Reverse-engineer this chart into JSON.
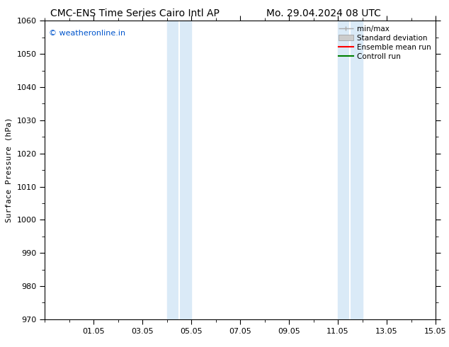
{
  "title_left": "CMC-ENS Time Series Cairo Intl AP",
  "title_right": "Mo. 29.04.2024 08 UTC",
  "ylabel": "Surface Pressure (hPa)",
  "ylim": [
    970,
    1060
  ],
  "yticks": [
    970,
    980,
    990,
    1000,
    1010,
    1020,
    1030,
    1040,
    1050,
    1060
  ],
  "xtick_labels": [
    "01.05",
    "03.05",
    "05.05",
    "07.05",
    "09.05",
    "11.05",
    "13.05",
    "15.05"
  ],
  "xtick_positions": [
    2,
    4,
    6,
    8,
    10,
    12,
    14,
    16
  ],
  "shaded_bands": [
    {
      "x_start": 5.0,
      "x_end": 5.5
    },
    {
      "x_start": 5.5,
      "x_end": 6.0
    },
    {
      "x_start": 12.0,
      "x_end": 12.5
    },
    {
      "x_start": 12.5,
      "x_end": 13.0
    }
  ],
  "shade_color": "#daeaf7",
  "watermark_text": "© weatheronline.in",
  "watermark_color": "#0055cc",
  "legend_entries": [
    {
      "label": "min/max",
      "color": "#aaaaaa",
      "lw": 1.0
    },
    {
      "label": "Standard deviation",
      "color": "#cccccc",
      "lw": 6
    },
    {
      "label": "Ensemble mean run",
      "color": "red",
      "lw": 1.5
    },
    {
      "label": "Controll run",
      "color": "green",
      "lw": 1.5
    }
  ],
  "bg_color": "#ffffff",
  "font_size": 8,
  "title_font_size": 10,
  "xlim": [
    0,
    16
  ],
  "minor_tick_interval": 0.5
}
